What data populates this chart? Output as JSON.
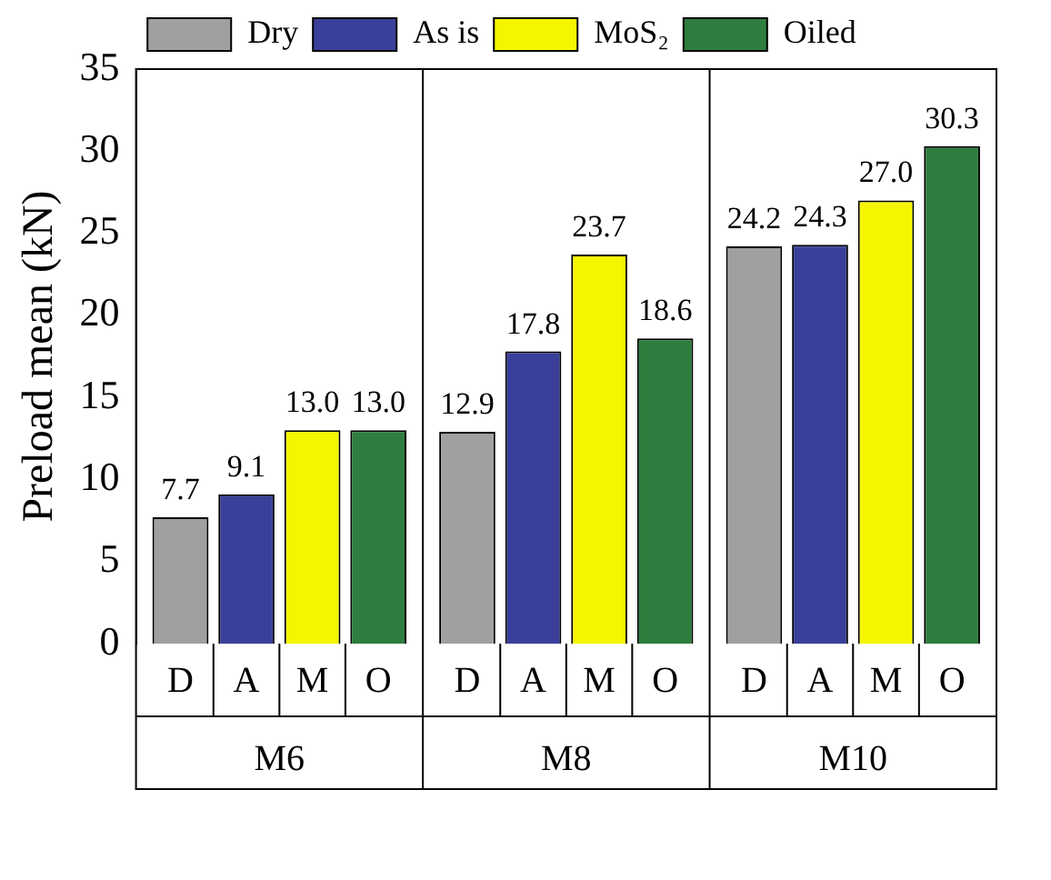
{
  "chart_data": {
    "type": "bar",
    "ylabel": "Preload mean (kN)",
    "categories": [
      "M6",
      "M8",
      "M10"
    ],
    "series": [
      {
        "name": "Dry",
        "color": "#a0a0a0",
        "values": [
          7.7,
          12.9,
          24.2
        ],
        "value_labels": [
          "7.7",
          "12.9",
          "24.2"
        ]
      },
      {
        "name": "As is",
        "color": "#3a3f9a",
        "values": [
          9.1,
          17.8,
          24.3
        ],
        "value_labels": [
          "9.1",
          "17.8",
          "24.3"
        ]
      },
      {
        "name": "MoS₂",
        "color": "#f5f500",
        "values": [
          13.0,
          23.7,
          27.0
        ],
        "value_labels": [
          "13.0",
          "23.7",
          "27.0"
        ]
      },
      {
        "name": "Oiled",
        "color": "#2e7d3e",
        "values": [
          13.0,
          18.6,
          30.3
        ],
        "value_labels": [
          "13.0",
          "18.6",
          "30.3"
        ]
      }
    ],
    "annotations": [
      "D",
      "A",
      "M",
      "O",
      "D",
      "A",
      "M",
      "O",
      "D",
      "A",
      "M",
      "O"
    ],
    "ylim": [
      0,
      35
    ],
    "yticks": [
      0,
      5,
      10,
      15,
      20,
      25,
      30,
      35
    ],
    "grid": false,
    "legend": "top"
  }
}
